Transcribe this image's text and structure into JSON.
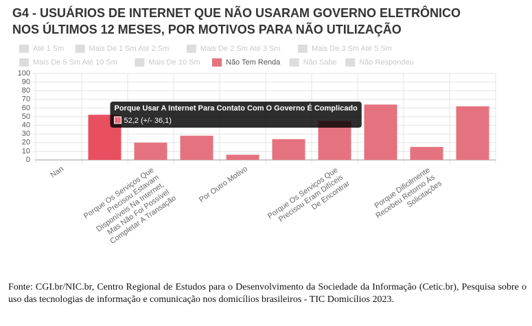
{
  "chart_data": {
    "type": "bar",
    "title": "G4 - USUÁRIOS DE INTERNET QUE NÃO USARAM GOVERNO ELETRÔNICO NOS ÚLTIMOS 12 MESES, POR MOTIVOS PARA NÃO UTILIZAÇÃO",
    "categories": [
      "Nan",
      "Porque Usar A Internet Para Contato Com O Governo É Complicado",
      "Porque Os Serviços Que Precisou Estavam Disponíveis Na Internet, Mas Não Foi Possível Completar A Transação",
      null,
      "Por Outro Motivo",
      null,
      "Porque Os Serviços Que Precisou Eram Difíceis De Encontrar",
      null,
      "Porque Dificilmente Recebeu Retorno Às Solicitações",
      null
    ],
    "series": [
      {
        "name": "Até 1 Sm",
        "color": "#dddddd",
        "hidden": true
      },
      {
        "name": "Mais De 1 Sm Até 2 Sm",
        "color": "#dddddd",
        "hidden": true
      },
      {
        "name": "Mais De 2 Sm Até 3 Sm",
        "color": "#dddddd",
        "hidden": true
      },
      {
        "name": "Mais De 3 Sm Até 5 Sm",
        "color": "#dddddd",
        "hidden": true
      },
      {
        "name": "Mais De 5 Sm Até 10 Sm",
        "color": "#dddddd",
        "hidden": true
      },
      {
        "name": "Mais De 10 Sm",
        "color": "#dddddd",
        "hidden": true
      },
      {
        "name": "Não Tem Renda",
        "color": "#e5737f",
        "highlight_color": "#e8505f",
        "values": [
          0,
          52.2,
          20,
          28,
          6,
          24,
          45,
          64,
          15,
          62
        ],
        "value_labels": [
          null,
          "52,2 (+/- 36,1)",
          null,
          null,
          null,
          null,
          null,
          null,
          null,
          null
        ]
      },
      {
        "name": "Não Sabe",
        "color": "#dddddd",
        "hidden": true
      },
      {
        "name": "Não Respondeu",
        "color": "#dddddd",
        "hidden": true
      }
    ],
    "tooltip_index": 1,
    "ylim": [
      0,
      100
    ],
    "yticks": [
      0,
      10,
      20,
      30,
      40,
      50,
      60,
      70,
      80,
      90,
      100
    ],
    "grid": true
  },
  "source": "Fonte: CGI.br/NIC.br, Centro Regional de Estudos para o Desenvolvimento da Sociedade da Informação (Cetic.br), Pesquisa sobre o uso das tecnologias de informação e comunicação nos domicílios brasileiros - TIC Domicílios 2023."
}
